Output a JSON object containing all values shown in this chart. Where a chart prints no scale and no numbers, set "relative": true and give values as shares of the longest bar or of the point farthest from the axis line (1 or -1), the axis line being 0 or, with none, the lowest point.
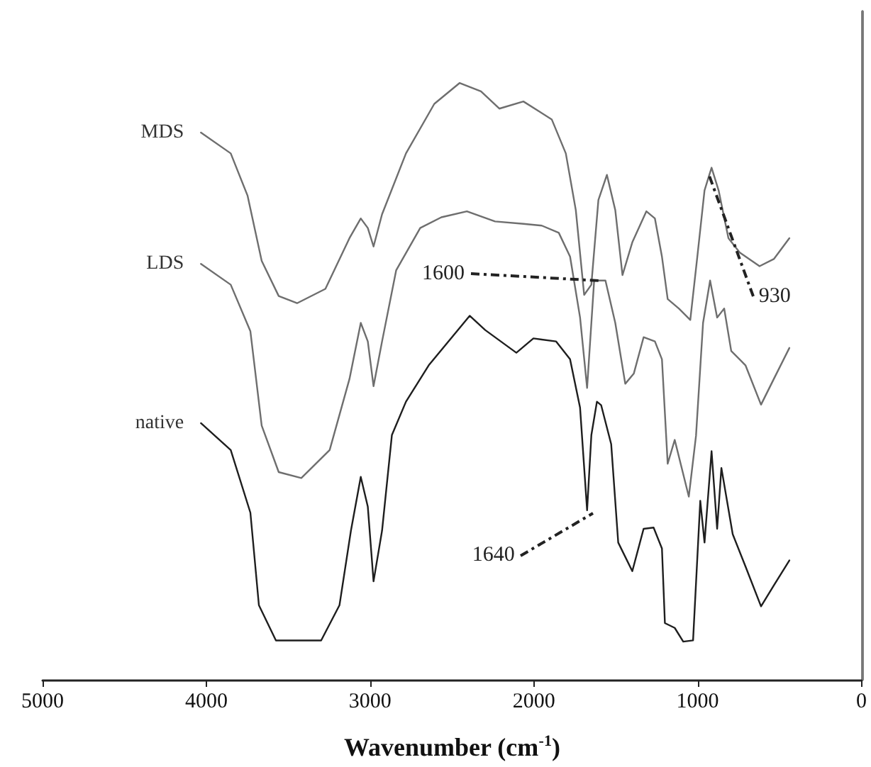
{
  "chart_data": {
    "type": "line",
    "relative": true,
    "xlabel": "Wavenumber (cm$^{-1}$)",
    "xlim": [
      5000,
      0
    ],
    "xticks": [
      5000,
      4000,
      3000,
      2000,
      1000,
      0
    ],
    "grid": false,
    "legend": false,
    "marker": "none",
    "line_style": "solid",
    "annotations": [
      {
        "text": "1640",
        "x": 1640,
        "y": 0.28
      },
      {
        "text": "1600",
        "x": 1600,
        "y": 0.669
      },
      {
        "text": "930",
        "x": 930,
        "y": 0.845
      }
    ],
    "series": [
      {
        "name": "MDS",
        "color": "#6e6e6e",
        "x": [
          4033,
          3851,
          3748,
          3662,
          3558,
          3446,
          3273,
          3126,
          3057,
          3014,
          2979,
          2927,
          2781,
          2608,
          2453,
          2323,
          2211,
          2064,
          1891,
          1805,
          1744,
          1693,
          1649,
          1606,
          1554,
          1503,
          1459,
          1399,
          1313,
          1261,
          1218,
          1183,
          1114,
          1045,
          1002,
          958,
          930,
          915,
          872,
          812,
          743,
          622,
          535,
          440
        ],
        "values": [
          0.917,
          0.882,
          0.811,
          0.702,
          0.643,
          0.631,
          0.655,
          0.74,
          0.773,
          0.757,
          0.726,
          0.78,
          0.882,
          0.965,
          1,
          0.986,
          0.957,
          0.969,
          0.939,
          0.882,
          0.787,
          0.645,
          0.662,
          0.804,
          0.846,
          0.787,
          0.678,
          0.733,
          0.785,
          0.773,
          0.709,
          0.638,
          0.622,
          0.603,
          0.709,
          0.82,
          0.845,
          0.858,
          0.82,
          0.74,
          0.716,
          0.693,
          0.705,
          0.74
        ]
      },
      {
        "name": "LDS",
        "color": "#6e6e6e",
        "x": [
          4033,
          3851,
          3731,
          3662,
          3558,
          3420,
          3247,
          3126,
          3057,
          3014,
          2979,
          2927,
          2841,
          2694,
          2565,
          2409,
          2237,
          2064,
          1952,
          1848,
          1779,
          1718,
          1675,
          1632,
          1600,
          1563,
          1503,
          1442,
          1390,
          1330,
          1261,
          1218,
          1183,
          1140,
          1054,
          1010,
          967,
          924,
          881,
          838,
          795,
          708,
          613,
          535,
          440
        ],
        "values": [
          0.697,
          0.662,
          0.584,
          0.426,
          0.348,
          0.338,
          0.385,
          0.504,
          0.598,
          0.567,
          0.492,
          0.567,
          0.686,
          0.757,
          0.775,
          0.785,
          0.768,
          0.764,
          0.761,
          0.749,
          0.709,
          0.607,
          0.489,
          0.669,
          0.669,
          0.669,
          0.598,
          0.496,
          0.513,
          0.574,
          0.567,
          0.537,
          0.362,
          0.402,
          0.307,
          0.409,
          0.598,
          0.669,
          0.607,
          0.622,
          0.551,
          0.527,
          0.461,
          0.504,
          0.556
        ]
      },
      {
        "name": "native",
        "color": "#1e1e1e",
        "x": [
          4033,
          3851,
          3731,
          3679,
          3575,
          3299,
          3187,
          3117,
          3057,
          3014,
          2979,
          2927,
          2867,
          2781,
          2642,
          2392,
          2297,
          2107,
          2003,
          1865,
          1779,
          1718,
          1675,
          1649,
          1615,
          1589,
          1528,
          1485,
          1399,
          1330,
          1269,
          1218,
          1200,
          1140,
          1088,
          1028,
          984,
          958,
          915,
          881,
          855,
          786,
          708,
          613,
          535,
          440
        ],
        "values": [
          0.43,
          0.385,
          0.28,
          0.125,
          0.066,
          0.066,
          0.125,
          0.25,
          0.34,
          0.29,
          0.165,
          0.25,
          0.41,
          0.466,
          0.527,
          0.61,
          0.586,
          0.548,
          0.572,
          0.567,
          0.537,
          0.456,
          0.284,
          0.41,
          0.466,
          0.46,
          0.395,
          0.23,
          0.182,
          0.253,
          0.255,
          0.22,
          0.095,
          0.087,
          0.064,
          0.066,
          0.3,
          0.23,
          0.383,
          0.253,
          0.355,
          0.244,
          0.19,
          0.123,
          0.158,
          0.2
        ]
      }
    ]
  }
}
